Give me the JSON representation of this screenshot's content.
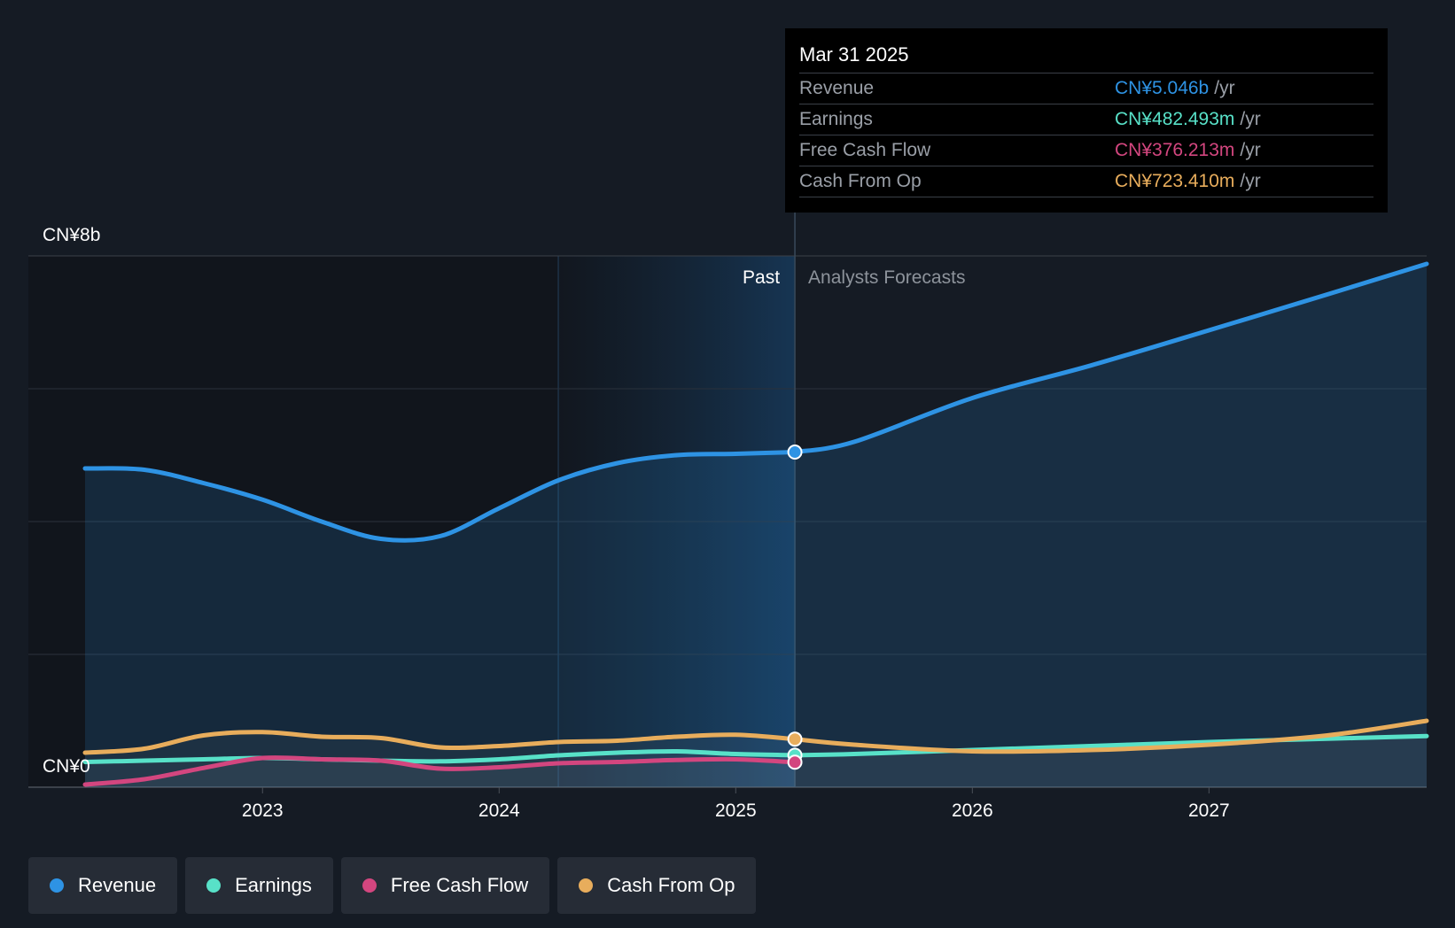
{
  "chart_data": {
    "type": "area",
    "xlim": [
      2022.25,
      2027.92
    ],
    "ylim": [
      0,
      8000
    ],
    "y_axis_labels": {
      "top": "CN¥8b",
      "bottom": "CN¥0"
    },
    "x_ticks": [
      {
        "value": 2023,
        "label": "2023"
      },
      {
        "value": 2024,
        "label": "2024"
      },
      {
        "value": 2025,
        "label": "2025"
      },
      {
        "value": 2026,
        "label": "2026"
      },
      {
        "value": 2027,
        "label": "2027"
      }
    ],
    "gridlines_y": [
      0,
      2000,
      4000,
      6000,
      8000
    ],
    "divider_x": 2025.25,
    "highlight_start_x": 2024.25,
    "past_label": "Past",
    "forecast_label": "Analysts Forecasts",
    "series": [
      {
        "name": "Revenue",
        "color": "#2e93e4",
        "fill": true,
        "past": [
          [
            2022.25,
            4800
          ],
          [
            2022.5,
            4780
          ],
          [
            2022.75,
            4580
          ],
          [
            2023.0,
            4330
          ],
          [
            2023.25,
            4000
          ],
          [
            2023.5,
            3740
          ],
          [
            2023.75,
            3780
          ],
          [
            2024.0,
            4200
          ],
          [
            2024.25,
            4620
          ],
          [
            2024.5,
            4880
          ],
          [
            2024.75,
            5000
          ],
          [
            2025.0,
            5020
          ],
          [
            2025.25,
            5046
          ]
        ],
        "forecast": [
          [
            2025.25,
            5046
          ],
          [
            2025.5,
            5200
          ],
          [
            2026.0,
            5860
          ],
          [
            2026.5,
            6350
          ],
          [
            2027.0,
            6880
          ],
          [
            2027.5,
            7420
          ],
          [
            2027.92,
            7880
          ]
        ]
      },
      {
        "name": "Earnings",
        "color": "#58e1c8",
        "fill": false,
        "past": [
          [
            2022.25,
            380
          ],
          [
            2022.5,
            400
          ],
          [
            2022.75,
            420
          ],
          [
            2023.0,
            440
          ],
          [
            2023.25,
            420
          ],
          [
            2023.5,
            400
          ],
          [
            2023.75,
            390
          ],
          [
            2024.0,
            420
          ],
          [
            2024.25,
            480
          ],
          [
            2024.5,
            520
          ],
          [
            2024.75,
            540
          ],
          [
            2025.0,
            500
          ],
          [
            2025.25,
            482
          ]
        ],
        "forecast": [
          [
            2025.25,
            482
          ],
          [
            2025.5,
            500
          ],
          [
            2026.0,
            560
          ],
          [
            2026.5,
            620
          ],
          [
            2027.0,
            680
          ],
          [
            2027.5,
            730
          ],
          [
            2027.92,
            770
          ]
        ]
      },
      {
        "name": "Free Cash Flow",
        "color": "#d3467f",
        "fill": false,
        "past": [
          [
            2022.25,
            40
          ],
          [
            2022.5,
            120
          ],
          [
            2022.75,
            290
          ],
          [
            2023.0,
            440
          ],
          [
            2023.25,
            420
          ],
          [
            2023.5,
            400
          ],
          [
            2023.75,
            280
          ],
          [
            2024.0,
            300
          ],
          [
            2024.25,
            360
          ],
          [
            2024.5,
            380
          ],
          [
            2024.75,
            410
          ],
          [
            2025.0,
            420
          ],
          [
            2025.25,
            376
          ]
        ]
      },
      {
        "name": "Cash From Op",
        "color": "#e8ad5c",
        "fill": false,
        "past": [
          [
            2022.25,
            520
          ],
          [
            2022.5,
            580
          ],
          [
            2022.75,
            780
          ],
          [
            2023.0,
            830
          ],
          [
            2023.25,
            760
          ],
          [
            2023.5,
            740
          ],
          [
            2023.75,
            600
          ],
          [
            2024.0,
            620
          ],
          [
            2024.25,
            680
          ],
          [
            2024.5,
            700
          ],
          [
            2024.75,
            760
          ],
          [
            2025.0,
            790
          ],
          [
            2025.25,
            723
          ]
        ],
        "forecast": [
          [
            2025.25,
            723
          ],
          [
            2025.5,
            640
          ],
          [
            2026.0,
            540
          ],
          [
            2026.5,
            560
          ],
          [
            2027.0,
            640
          ],
          [
            2027.5,
            780
          ],
          [
            2027.92,
            1000
          ]
        ]
      }
    ]
  },
  "tooltip": {
    "date": "Mar 31 2025",
    "rows": [
      {
        "label": "Revenue",
        "value": "CN¥5.046b",
        "unit": "/yr",
        "color": "#2e93e4"
      },
      {
        "label": "Earnings",
        "value": "CN¥482.493m",
        "unit": "/yr",
        "color": "#58e1c8"
      },
      {
        "label": "Free Cash Flow",
        "value": "CN¥376.213m",
        "unit": "/yr",
        "color": "#d3467f"
      },
      {
        "label": "Cash From Op",
        "value": "CN¥723.410m",
        "unit": "/yr",
        "color": "#e8ad5c"
      }
    ]
  },
  "legend": [
    {
      "label": "Revenue",
      "color": "#2e93e4"
    },
    {
      "label": "Earnings",
      "color": "#58e1c8"
    },
    {
      "label": "Free Cash Flow",
      "color": "#d3467f"
    },
    {
      "label": "Cash From Op",
      "color": "#e8ad5c"
    }
  ]
}
